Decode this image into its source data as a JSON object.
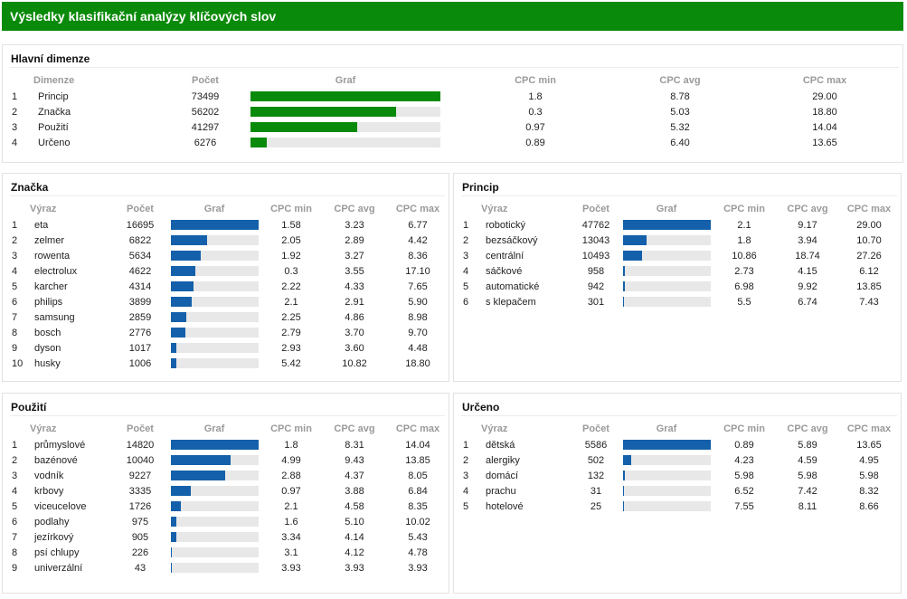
{
  "title": "Výsledky klasifikační analýzy klíčových slov",
  "colors": {
    "header": "#0a8a0a",
    "bar_green": "#0a8a0a",
    "bar_blue": "#1460aa",
    "track": "#e8e8e8"
  },
  "panels": [
    {
      "id": "hlavni",
      "title": "Hlavní dimenze",
      "columns": [
        "",
        "Dimenze",
        "Počet",
        "Graf",
        "CPC min",
        "CPC avg",
        "CPC max"
      ],
      "max": 73499,
      "color": "green",
      "rows": [
        {
          "n": "1",
          "term": "Princip",
          "count": "73499",
          "value": 73499,
          "min": "1.8",
          "avg": "8.78",
          "max": "29.00"
        },
        {
          "n": "2",
          "term": "Značka",
          "count": "56202",
          "value": 56202,
          "min": "0.3",
          "avg": "5.03",
          "max": "18.80"
        },
        {
          "n": "3",
          "term": "Použití",
          "count": "41297",
          "value": 41297,
          "min": "0.97",
          "avg": "5.32",
          "max": "14.04"
        },
        {
          "n": "4",
          "term": "Určeno",
          "count": "6276",
          "value": 6276,
          "min": "0.89",
          "avg": "6.40",
          "max": "13.65"
        }
      ]
    },
    {
      "id": "znacka",
      "title": "Značka",
      "columns": [
        "",
        "Výraz",
        "Počet",
        "Graf",
        "CPC min",
        "CPC avg",
        "CPC max"
      ],
      "max": 16695,
      "color": "blue",
      "rows": [
        {
          "n": "1",
          "term": "eta",
          "count": "16695",
          "value": 16695,
          "min": "1.58",
          "avg": "3.23",
          "max": "6.77"
        },
        {
          "n": "2",
          "term": "zelmer",
          "count": "6822",
          "value": 6822,
          "min": "2.05",
          "avg": "2.89",
          "max": "4.42"
        },
        {
          "n": "3",
          "term": "rowenta",
          "count": "5634",
          "value": 5634,
          "min": "1.92",
          "avg": "3.27",
          "max": "8.36"
        },
        {
          "n": "4",
          "term": "electrolux",
          "count": "4622",
          "value": 4622,
          "min": "0.3",
          "avg": "3.55",
          "max": "17.10"
        },
        {
          "n": "5",
          "term": "karcher",
          "count": "4314",
          "value": 4314,
          "min": "2.22",
          "avg": "4.33",
          "max": "7.65"
        },
        {
          "n": "6",
          "term": "philips",
          "count": "3899",
          "value": 3899,
          "min": "2.1",
          "avg": "2.91",
          "max": "5.90"
        },
        {
          "n": "7",
          "term": "samsung",
          "count": "2859",
          "value": 2859,
          "min": "2.25",
          "avg": "4.86",
          "max": "8.98"
        },
        {
          "n": "8",
          "term": "bosch",
          "count": "2776",
          "value": 2776,
          "min": "2.79",
          "avg": "3.70",
          "max": "9.70"
        },
        {
          "n": "9",
          "term": "dyson",
          "count": "1017",
          "value": 1017,
          "min": "2.93",
          "avg": "3.60",
          "max": "4.48"
        },
        {
          "n": "10",
          "term": "husky",
          "count": "1006",
          "value": 1006,
          "min": "5.42",
          "avg": "10.82",
          "max": "18.80"
        }
      ]
    },
    {
      "id": "princip",
      "title": "Princip",
      "columns": [
        "",
        "Výraz",
        "Počet",
        "Graf",
        "CPC min",
        "CPC avg",
        "CPC max"
      ],
      "max": 47762,
      "color": "blue",
      "rows": [
        {
          "n": "1",
          "term": "robotický",
          "count": "47762",
          "value": 47762,
          "min": "2.1",
          "avg": "9.17",
          "max": "29.00"
        },
        {
          "n": "2",
          "term": "bezsáčkový",
          "count": "13043",
          "value": 13043,
          "min": "1.8",
          "avg": "3.94",
          "max": "10.70"
        },
        {
          "n": "3",
          "term": "centrální",
          "count": "10493",
          "value": 10493,
          "min": "10.86",
          "avg": "18.74",
          "max": "27.26"
        },
        {
          "n": "4",
          "term": "sáčkové",
          "count": "958",
          "value": 958,
          "min": "2.73",
          "avg": "4.15",
          "max": "6.12"
        },
        {
          "n": "5",
          "term": "automatické",
          "count": "942",
          "value": 942,
          "min": "6.98",
          "avg": "9.92",
          "max": "13.85"
        },
        {
          "n": "6",
          "term": "s klepačem",
          "count": "301",
          "value": 301,
          "min": "5.5",
          "avg": "6.74",
          "max": "7.43"
        }
      ]
    },
    {
      "id": "pouziti",
      "title": "Použití",
      "columns": [
        "",
        "Výraz",
        "Počet",
        "Graf",
        "CPC min",
        "CPC avg",
        "CPC max"
      ],
      "max": 14820,
      "color": "blue",
      "rows": [
        {
          "n": "1",
          "term": "průmyslové",
          "count": "14820",
          "value": 14820,
          "min": "1.8",
          "avg": "8.31",
          "max": "14.04"
        },
        {
          "n": "2",
          "term": "bazénové",
          "count": "10040",
          "value": 10040,
          "min": "4.99",
          "avg": "9.43",
          "max": "13.85"
        },
        {
          "n": "3",
          "term": "vodník",
          "count": "9227",
          "value": 9227,
          "min": "2.88",
          "avg": "4.37",
          "max": "8.05"
        },
        {
          "n": "4",
          "term": "krbovy",
          "count": "3335",
          "value": 3335,
          "min": "0.97",
          "avg": "3.88",
          "max": "6.84"
        },
        {
          "n": "5",
          "term": "viceucelove",
          "count": "1726",
          "value": 1726,
          "min": "2.1",
          "avg": "4.58",
          "max": "8.35"
        },
        {
          "n": "6",
          "term": "podlahy",
          "count": "975",
          "value": 975,
          "min": "1.6",
          "avg": "5.10",
          "max": "10.02"
        },
        {
          "n": "7",
          "term": "jezírkový",
          "count": "905",
          "value": 905,
          "min": "3.34",
          "avg": "4.14",
          "max": "5.43"
        },
        {
          "n": "8",
          "term": "psí chlupy",
          "count": "226",
          "value": 226,
          "min": "3.1",
          "avg": "4.12",
          "max": "4.78"
        },
        {
          "n": "9",
          "term": "univerzální",
          "count": "43",
          "value": 43,
          "min": "3.93",
          "avg": "3.93",
          "max": "3.93"
        }
      ]
    },
    {
      "id": "urceno",
      "title": "Určeno",
      "columns": [
        "",
        "Výraz",
        "Počet",
        "Graf",
        "CPC min",
        "CPC avg",
        "CPC max"
      ],
      "max": 5586,
      "color": "blue",
      "rows": [
        {
          "n": "1",
          "term": "dětská",
          "count": "5586",
          "value": 5586,
          "min": "0.89",
          "avg": "5.89",
          "max": "13.65"
        },
        {
          "n": "2",
          "term": "alergiky",
          "count": "502",
          "value": 502,
          "min": "4.23",
          "avg": "4.59",
          "max": "4.95"
        },
        {
          "n": "3",
          "term": "domácí",
          "count": "132",
          "value": 132,
          "min": "5.98",
          "avg": "5.98",
          "max": "5.98"
        },
        {
          "n": "4",
          "term": "prachu",
          "count": "31",
          "value": 31,
          "min": "6.52",
          "avg": "7.42",
          "max": "8.32"
        },
        {
          "n": "5",
          "term": "hotelové",
          "count": "25",
          "value": 25,
          "min": "7.55",
          "avg": "8.11",
          "max": "8.66"
        }
      ]
    }
  ]
}
